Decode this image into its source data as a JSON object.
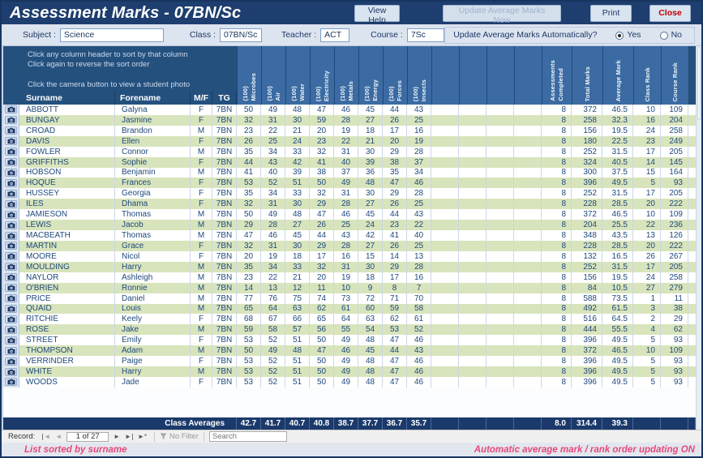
{
  "window": {
    "title": "Assessment Marks - 07BN/Sc"
  },
  "toolbar": {
    "view_help": "View Help",
    "update_now": "Update Average Marks Now",
    "print": "Print",
    "close": "Close"
  },
  "filters": {
    "subject_label": "Subject :",
    "subject_value": "Science",
    "class_label": "Class :",
    "class_value": "07BN/Sc",
    "teacher_label": "Teacher :",
    "teacher_value": "ACT",
    "course_label": "Course :",
    "course_value": "7Sc",
    "auto_update_label": "Update Average Marks Automatically?",
    "yes_label": "Yes",
    "no_label": "No",
    "auto_update_selected": "Yes"
  },
  "instructions": [
    "Click any column header to sort by that column",
    "Click again to reverse the sort order",
    "Click the camera button to view a student photo"
  ],
  "table": {
    "fixed_headers": {
      "surname": "Surname",
      "forename": "Forename",
      "mf": "M/F",
      "tg": "TG"
    },
    "assessment_headers": [
      {
        "name": "Microbes",
        "max": "(100)"
      },
      {
        "name": "Air",
        "max": "(100)"
      },
      {
        "name": "Water",
        "max": "(100)"
      },
      {
        "name": "Electricity",
        "max": "(100)"
      },
      {
        "name": "Metals",
        "max": "(100)"
      },
      {
        "name": "Energy",
        "max": "(100)"
      },
      {
        "name": "Forces",
        "max": "(100)"
      },
      {
        "name": "Insects",
        "max": "(100)"
      }
    ],
    "empty_columns": 4,
    "summary_headers": [
      {
        "lines": [
          "Completed",
          "Assessments"
        ]
      },
      {
        "lines": [
          "Total Marks"
        ]
      },
      {
        "lines": [
          "Average Mark"
        ]
      },
      {
        "lines": [
          "Class Rank"
        ]
      },
      {
        "lines": [
          "Course Rank"
        ]
      }
    ],
    "rows": [
      {
        "surname": "ABBOTT",
        "forename": "Galyna",
        "mf": "F",
        "tg": "7BN",
        "marks": [
          50,
          49,
          48,
          47,
          46,
          45,
          44,
          43
        ],
        "completed": 8,
        "total": 372,
        "average": "46.5",
        "class_rank": 10,
        "course_rank": 109
      },
      {
        "surname": "BUNGAY",
        "forename": "Jasmine",
        "mf": "F",
        "tg": "7BN",
        "marks": [
          32,
          31,
          30,
          59,
          28,
          27,
          26,
          25
        ],
        "completed": 8,
        "total": 258,
        "average": "32.3",
        "class_rank": 16,
        "course_rank": 204
      },
      {
        "surname": "CROAD",
        "forename": "Brandon",
        "mf": "M",
        "tg": "7BN",
        "marks": [
          23,
          22,
          21,
          20,
          19,
          18,
          17,
          16
        ],
        "completed": 8,
        "total": 156,
        "average": "19.5",
        "class_rank": 24,
        "course_rank": 258
      },
      {
        "surname": "DAVIS",
        "forename": "Ellen",
        "mf": "F",
        "tg": "7BN",
        "marks": [
          26,
          25,
          24,
          23,
          22,
          21,
          20,
          19
        ],
        "completed": 8,
        "total": 180,
        "average": "22.5",
        "class_rank": 23,
        "course_rank": 249
      },
      {
        "surname": "FOWLER",
        "forename": "Connor",
        "mf": "M",
        "tg": "7BN",
        "marks": [
          35,
          34,
          33,
          32,
          31,
          30,
          29,
          28
        ],
        "completed": 8,
        "total": 252,
        "average": "31.5",
        "class_rank": 17,
        "course_rank": 205
      },
      {
        "surname": "GRIFFITHS",
        "forename": "Sophie",
        "mf": "F",
        "tg": "7BN",
        "marks": [
          44,
          43,
          42,
          41,
          40,
          39,
          38,
          37
        ],
        "completed": 8,
        "total": 324,
        "average": "40.5",
        "class_rank": 14,
        "course_rank": 145
      },
      {
        "surname": "HOBSON",
        "forename": "Benjamin",
        "mf": "M",
        "tg": "7BN",
        "marks": [
          41,
          40,
          39,
          38,
          37,
          36,
          35,
          34
        ],
        "completed": 8,
        "total": 300,
        "average": "37.5",
        "class_rank": 15,
        "course_rank": 164
      },
      {
        "surname": "HOQUE",
        "forename": "Frances",
        "mf": "F",
        "tg": "7BN",
        "marks": [
          53,
          52,
          51,
          50,
          49,
          48,
          47,
          46
        ],
        "completed": 8,
        "total": 396,
        "average": "49.5",
        "class_rank": 5,
        "course_rank": 93
      },
      {
        "surname": "HUSSEY",
        "forename": "Georgia",
        "mf": "F",
        "tg": "7BN",
        "marks": [
          35,
          34,
          33,
          32,
          31,
          30,
          29,
          28
        ],
        "completed": 8,
        "total": 252,
        "average": "31.5",
        "class_rank": 17,
        "course_rank": 205
      },
      {
        "surname": "ILES",
        "forename": "Dhama",
        "mf": "F",
        "tg": "7BN",
        "marks": [
          32,
          31,
          30,
          29,
          28,
          27,
          26,
          25
        ],
        "completed": 8,
        "total": 228,
        "average": "28.5",
        "class_rank": 20,
        "course_rank": 222
      },
      {
        "surname": "JAMIESON",
        "forename": "Thomas",
        "mf": "M",
        "tg": "7BN",
        "marks": [
          50,
          49,
          48,
          47,
          46,
          45,
          44,
          43
        ],
        "completed": 8,
        "total": 372,
        "average": "46.5",
        "class_rank": 10,
        "course_rank": 109
      },
      {
        "surname": "LEWIS",
        "forename": "Jacob",
        "mf": "M",
        "tg": "7BN",
        "marks": [
          29,
          28,
          27,
          26,
          25,
          24,
          23,
          22
        ],
        "completed": 8,
        "total": 204,
        "average": "25.5",
        "class_rank": 22,
        "course_rank": 236
      },
      {
        "surname": "MACBEATH",
        "forename": "Thomas",
        "mf": "M",
        "tg": "7BN",
        "marks": [
          47,
          46,
          45,
          44,
          43,
          42,
          41,
          40
        ],
        "completed": 8,
        "total": 348,
        "average": "43.5",
        "class_rank": 13,
        "course_rank": 126
      },
      {
        "surname": "MARTIN",
        "forename": "Grace",
        "mf": "F",
        "tg": "7BN",
        "marks": [
          32,
          31,
          30,
          29,
          28,
          27,
          26,
          25
        ],
        "completed": 8,
        "total": 228,
        "average": "28.5",
        "class_rank": 20,
        "course_rank": 222
      },
      {
        "surname": "MOORE",
        "forename": "Nicol",
        "mf": "F",
        "tg": "7BN",
        "marks": [
          20,
          19,
          18,
          17,
          16,
          15,
          14,
          13
        ],
        "completed": 8,
        "total": 132,
        "average": "16.5",
        "class_rank": 26,
        "course_rank": 267
      },
      {
        "surname": "MOULDING",
        "forename": "Harry",
        "mf": "M",
        "tg": "7BN",
        "marks": [
          35,
          34,
          33,
          32,
          31,
          30,
          29,
          28
        ],
        "completed": 8,
        "total": 252,
        "average": "31.5",
        "class_rank": 17,
        "course_rank": 205
      },
      {
        "surname": "NAYLOR",
        "forename": "Ashleigh",
        "mf": "M",
        "tg": "7BN",
        "marks": [
          23,
          22,
          21,
          20,
          19,
          18,
          17,
          16
        ],
        "completed": 8,
        "total": 156,
        "average": "19.5",
        "class_rank": 24,
        "course_rank": 258
      },
      {
        "surname": "O'BRIEN",
        "forename": "Ronnie",
        "mf": "M",
        "tg": "7BN",
        "marks": [
          14,
          13,
          12,
          11,
          10,
          9,
          8,
          7
        ],
        "completed": 8,
        "total": 84,
        "average": "10.5",
        "class_rank": 27,
        "course_rank": 279
      },
      {
        "surname": "PRICE",
        "forename": "Daniel",
        "mf": "M",
        "tg": "7BN",
        "marks": [
          77,
          76,
          75,
          74,
          73,
          72,
          71,
          70
        ],
        "completed": 8,
        "total": 588,
        "average": "73.5",
        "class_rank": 1,
        "course_rank": 11
      },
      {
        "surname": "QUAID",
        "forename": "Louis",
        "mf": "M",
        "tg": "7BN",
        "marks": [
          65,
          64,
          63,
          62,
          61,
          60,
          59,
          58
        ],
        "completed": 8,
        "total": 492,
        "average": "61.5",
        "class_rank": 3,
        "course_rank": 38
      },
      {
        "surname": "RITCHIE",
        "forename": "Keely",
        "mf": "F",
        "tg": "7BN",
        "marks": [
          68,
          67,
          66,
          65,
          64,
          63,
          62,
          61
        ],
        "completed": 8,
        "total": 516,
        "average": "64.5",
        "class_rank": 2,
        "course_rank": 29
      },
      {
        "surname": "ROSE",
        "forename": "Jake",
        "mf": "M",
        "tg": "7BN",
        "marks": [
          59,
          58,
          57,
          56,
          55,
          54,
          53,
          52
        ],
        "completed": 8,
        "total": 444,
        "average": "55.5",
        "class_rank": 4,
        "course_rank": 62
      },
      {
        "surname": "STREET",
        "forename": "Emily",
        "mf": "F",
        "tg": "7BN",
        "marks": [
          53,
          52,
          51,
          50,
          49,
          48,
          47,
          46
        ],
        "completed": 8,
        "total": 396,
        "average": "49.5",
        "class_rank": 5,
        "course_rank": 93
      },
      {
        "surname": "THOMPSON",
        "forename": "Adam",
        "mf": "M",
        "tg": "7BN",
        "marks": [
          50,
          49,
          48,
          47,
          46,
          45,
          44,
          43
        ],
        "completed": 8,
        "total": 372,
        "average": "46.5",
        "class_rank": 10,
        "course_rank": 109
      },
      {
        "surname": "VERRINDER",
        "forename": "Paige",
        "mf": "F",
        "tg": "7BN",
        "marks": [
          53,
          52,
          51,
          50,
          49,
          48,
          47,
          46
        ],
        "completed": 8,
        "total": 396,
        "average": "49.5",
        "class_rank": 5,
        "course_rank": 93
      },
      {
        "surname": "WHITE",
        "forename": "Harry",
        "mf": "M",
        "tg": "7BN",
        "marks": [
          53,
          52,
          51,
          50,
          49,
          48,
          47,
          46
        ],
        "completed": 8,
        "total": 396,
        "average": "49.5",
        "class_rank": 5,
        "course_rank": 93
      },
      {
        "surname": "WOODS",
        "forename": "Jade",
        "mf": "F",
        "tg": "7BN",
        "marks": [
          53,
          52,
          51,
          50,
          49,
          48,
          47,
          46
        ],
        "completed": 8,
        "total": 396,
        "average": "49.5",
        "class_rank": 5,
        "course_rank": 93
      }
    ]
  },
  "averages": {
    "label": "Class Averages",
    "marks": [
      "42.7",
      "41.7",
      "40.7",
      "40.8",
      "38.7",
      "37.7",
      "36.7",
      "35.7"
    ],
    "completed": "8.0",
    "total": "314.4",
    "average": "39.3"
  },
  "record_nav": {
    "label": "Record:",
    "position": "1 of 27",
    "first_icon": "◄",
    "prev_icon": "◄",
    "next_icon": "►",
    "last_icon": "►",
    "new_icon": "►*",
    "filter_label": "No Filter",
    "search_placeholder": "Search"
  },
  "status": {
    "left": "List sorted by surname",
    "right": "Automatic average mark / rank order updating ON"
  },
  "colors": {
    "navy": "#1d3e6e",
    "header_cell_blue": "#3b6ba2",
    "alt_row_green": "#d8e4bc",
    "data_text_blue": "#1f497d",
    "status_pink": "#e8477b",
    "close_red": "#c00000"
  }
}
